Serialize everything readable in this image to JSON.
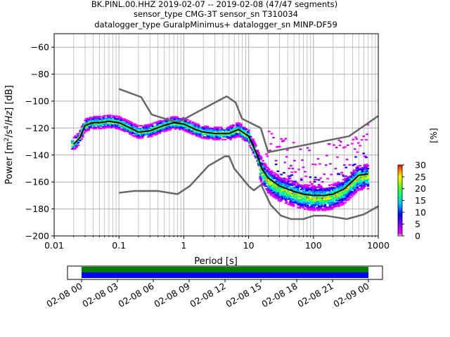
{
  "chart_data": {
    "type": "heatmap",
    "title_lines": [
      "BK.PINL.00.HHZ   2019-02-07 -- 2019-02-08  (47/47 segments)",
      "sensor_type CMG-3T sensor_sn T310034",
      "datalogger_type GuralpMinimus+ datalogger_sn MINP-DF59"
    ],
    "xlabel": "Period [s]",
    "ylabel": "Power [$m^2/s^4/Hz$] [dB]",
    "x_scale": "log",
    "xlim": [
      0.01,
      1000
    ],
    "ylim": [
      -200,
      -50
    ],
    "x_tick_labels": [
      "0.01",
      "0.1",
      "1",
      "10",
      "100",
      "1000"
    ],
    "x_tick_values": [
      0.01,
      0.1,
      1,
      10,
      100,
      1000
    ],
    "y_tick_values": [
      -60,
      -80,
      -100,
      -120,
      -140,
      -160,
      -180,
      -200
    ],
    "y_tick_labels": [
      "−60",
      "−80",
      "−100",
      "−120",
      "−140",
      "−160",
      "−180",
      "−200"
    ],
    "grid": true,
    "colorbar": {
      "label": "[%]",
      "ticks": [
        0,
        5,
        10,
        15,
        20,
        25,
        30
      ],
      "tick_labels": [
        "0",
        "5",
        "10",
        "15",
        "20",
        "25",
        "30"
      ],
      "range": [
        0,
        30
      ]
    },
    "series": [
      {
        "name": "",
        "color": "#000000",
        "role": "mode of the probability density",
        "period": [
          0.02,
          0.025,
          0.03,
          0.04,
          0.05,
          0.07,
          0.1,
          0.15,
          0.2,
          0.3,
          0.5,
          0.7,
          1,
          1.5,
          2,
          3,
          5,
          7,
          10,
          13,
          16,
          20,
          30,
          50,
          70,
          100,
          150,
          200,
          300,
          500,
          700
        ],
        "power_db": [
          -132,
          -127,
          -118,
          -116,
          -116,
          -115,
          -116,
          -120,
          -123,
          -122,
          -118,
          -116,
          -117,
          -121,
          -123,
          -124,
          -124,
          -121,
          -126,
          -138,
          -150,
          -157,
          -163,
          -167,
          -169,
          -170,
          -170,
          -169,
          -165,
          -155,
          -154
        ]
      },
      {
        "name": "",
        "color": "#666666",
        "role": "high noise model",
        "period": [
          0.1,
          0.22,
          0.32,
          0.8,
          3.8,
          4.6,
          6.3,
          7.9,
          15.4,
          20,
          354.8,
          1000
        ],
        "power_db": [
          -91,
          -97,
          -110,
          -116,
          -98.5,
          -96.5,
          -101,
          -113,
          -120,
          -138,
          -126,
          -111
        ]
      },
      {
        "name": "",
        "color": "#666666",
        "role": "low noise model",
        "period": [
          0.1,
          0.17,
          0.4,
          0.8,
          1.24,
          2.4,
          4.3,
          5,
          6,
          10,
          12,
          15.6,
          21.9,
          31.6,
          45,
          70,
          101,
          154,
          328,
          600,
          1000
        ],
        "power_db": [
          -168,
          -166.7,
          -166.7,
          -169,
          -163,
          -148,
          -141,
          -141,
          -150,
          -163,
          -166.2,
          -162.1,
          -177,
          -185,
          -187.5,
          -187.5,
          -185,
          -185,
          -187.5,
          -184,
          -178
        ]
      }
    ],
    "segment_timeline": {
      "tick_labels": [
        "02-08 00",
        "02-08 03",
        "02-08 06",
        "02-08 09",
        "02-08 12",
        "02-08 15",
        "02-08 18",
        "02-08 21",
        "02-09 00"
      ],
      "start_hour": 0,
      "end_hour": 24,
      "bars": [
        {
          "color": "#008000",
          "from_hour": 0,
          "to_hour": 24
        },
        {
          "color": "#0000ff",
          "from_hour": 0,
          "to_hour": 24
        }
      ]
    }
  }
}
